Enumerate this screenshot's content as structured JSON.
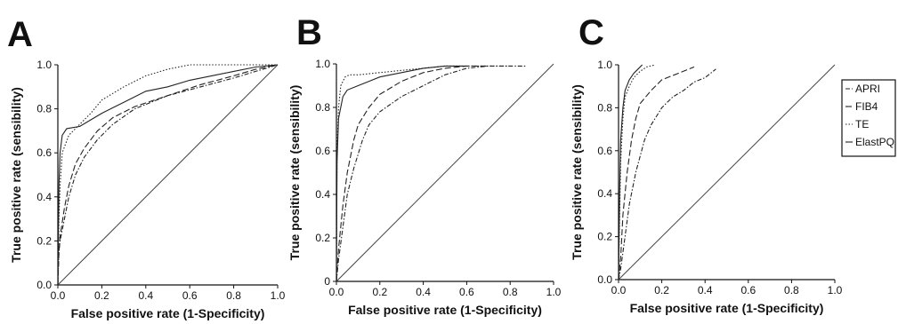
{
  "legend_entries": [
    {
      "label": "APRI",
      "dash": "5,2,1.5,2"
    },
    {
      "label": "FIB4",
      "dash": "7,3"
    },
    {
      "label": "TE",
      "dash": "1.5,2"
    },
    {
      "label": "ElastPQ",
      "dash": ""
    }
  ],
  "chart_data": [
    {
      "type": "line",
      "panel": "A",
      "xlabel": "False positive rate (1-Specificity)",
      "ylabel": "True positive rate (sensibility)",
      "xlim": [
        0,
        1
      ],
      "ylim": [
        0,
        1
      ],
      "xticks": [
        "0.0",
        "0.2",
        "0.4",
        "0.6",
        "0.8",
        "1.0"
      ],
      "yticks": [
        "0.0",
        "0.2",
        "0.4",
        "0.6",
        "0.8",
        "1.0"
      ],
      "grid": false,
      "legend": "none",
      "reference_line": [
        [
          0,
          0
        ],
        [
          1,
          1
        ]
      ],
      "series": [
        {
          "name": "APRI",
          "points": [
            [
              0,
              0
            ],
            [
              0.005,
              0.15
            ],
            [
              0.01,
              0.2
            ],
            [
              0.03,
              0.3
            ],
            [
              0.05,
              0.4
            ],
            [
              0.08,
              0.5
            ],
            [
              0.12,
              0.58
            ],
            [
              0.18,
              0.66
            ],
            [
              0.25,
              0.73
            ],
            [
              0.35,
              0.8
            ],
            [
              0.5,
              0.86
            ],
            [
              0.65,
              0.9
            ],
            [
              0.8,
              0.94
            ],
            [
              0.9,
              0.97
            ],
            [
              1,
              1
            ]
          ]
        },
        {
          "name": "FIB4",
          "points": [
            [
              0,
              0
            ],
            [
              0.005,
              0.15
            ],
            [
              0.01,
              0.22
            ],
            [
              0.03,
              0.35
            ],
            [
              0.05,
              0.45
            ],
            [
              0.08,
              0.55
            ],
            [
              0.12,
              0.62
            ],
            [
              0.18,
              0.7
            ],
            [
              0.25,
              0.76
            ],
            [
              0.35,
              0.81
            ],
            [
              0.5,
              0.86
            ],
            [
              0.65,
              0.91
            ],
            [
              0.8,
              0.95
            ],
            [
              0.9,
              0.98
            ],
            [
              1,
              1
            ]
          ]
        },
        {
          "name": "TE",
          "points": [
            [
              0,
              0
            ],
            [
              0.005,
              0.3
            ],
            [
              0.01,
              0.45
            ],
            [
              0.02,
              0.6
            ],
            [
              0.05,
              0.68
            ],
            [
              0.1,
              0.73
            ],
            [
              0.15,
              0.78
            ],
            [
              0.2,
              0.84
            ],
            [
              0.3,
              0.9
            ],
            [
              0.4,
              0.95
            ],
            [
              0.5,
              0.98
            ],
            [
              0.6,
              1.0
            ],
            [
              0.8,
              1.0
            ],
            [
              1,
              1
            ]
          ]
        },
        {
          "name": "ElastPQ",
          "points": [
            [
              0,
              0
            ],
            [
              0.005,
              0.45
            ],
            [
              0.01,
              0.6
            ],
            [
              0.02,
              0.68
            ],
            [
              0.04,
              0.71
            ],
            [
              0.1,
              0.72
            ],
            [
              0.15,
              0.75
            ],
            [
              0.2,
              0.78
            ],
            [
              0.3,
              0.83
            ],
            [
              0.4,
              0.88
            ],
            [
              0.5,
              0.9
            ],
            [
              0.6,
              0.93
            ],
            [
              0.7,
              0.95
            ],
            [
              0.8,
              0.97
            ],
            [
              0.9,
              0.99
            ],
            [
              1,
              1
            ]
          ]
        }
      ]
    },
    {
      "type": "line",
      "panel": "B",
      "xlabel": "False positive rate (1-Specificity)",
      "ylabel": "True positive rate (sensibility)",
      "xlim": [
        0,
        1
      ],
      "ylim": [
        0,
        1
      ],
      "xticks": [
        "0.0",
        "0.2",
        "0.4",
        "0.6",
        "0.8",
        "1.0"
      ],
      "yticks": [
        "0",
        "0.2",
        "0.4",
        "0.6",
        "0.8",
        "1.0"
      ],
      "grid": false,
      "legend": "none",
      "reference_line": [
        [
          0,
          0
        ],
        [
          1,
          1
        ]
      ],
      "series": [
        {
          "name": "APRI",
          "points": [
            [
              0,
              0
            ],
            [
              0.01,
              0.1
            ],
            [
              0.03,
              0.25
            ],
            [
              0.05,
              0.4
            ],
            [
              0.08,
              0.52
            ],
            [
              0.12,
              0.65
            ],
            [
              0.15,
              0.72
            ],
            [
              0.2,
              0.78
            ],
            [
              0.3,
              0.85
            ],
            [
              0.4,
              0.9
            ],
            [
              0.5,
              0.95
            ],
            [
              0.6,
              0.98
            ],
            [
              0.7,
              0.99
            ],
            [
              0.87,
              0.99
            ]
          ]
        },
        {
          "name": "FIB4",
          "points": [
            [
              0,
              0
            ],
            [
              0.01,
              0.15
            ],
            [
              0.03,
              0.35
            ],
            [
              0.05,
              0.5
            ],
            [
              0.08,
              0.65
            ],
            [
              0.1,
              0.72
            ],
            [
              0.15,
              0.8
            ],
            [
              0.2,
              0.86
            ],
            [
              0.3,
              0.92
            ],
            [
              0.4,
              0.96
            ],
            [
              0.5,
              0.98
            ],
            [
              0.6,
              0.99
            ],
            [
              0.7,
              0.99
            ]
          ]
        },
        {
          "name": "TE",
          "points": [
            [
              0,
              0
            ],
            [
              0.003,
              0.6
            ],
            [
              0.01,
              0.8
            ],
            [
              0.02,
              0.9
            ],
            [
              0.04,
              0.94
            ],
            [
              0.06,
              0.95
            ],
            [
              0.1,
              0.95
            ],
            [
              0.2,
              0.96
            ],
            [
              0.3,
              0.97
            ],
            [
              0.4,
              0.98
            ],
            [
              0.5,
              0.99
            ],
            [
              0.6,
              0.99
            ],
            [
              0.8,
              0.99
            ]
          ]
        },
        {
          "name": "ElastPQ",
          "points": [
            [
              0,
              0
            ],
            [
              0.003,
              0.55
            ],
            [
              0.01,
              0.75
            ],
            [
              0.03,
              0.85
            ],
            [
              0.05,
              0.88
            ],
            [
              0.1,
              0.9
            ],
            [
              0.15,
              0.92
            ],
            [
              0.2,
              0.94
            ],
            [
              0.3,
              0.96
            ],
            [
              0.4,
              0.98
            ],
            [
              0.5,
              0.99
            ],
            [
              0.6,
              0.99
            ]
          ]
        }
      ]
    },
    {
      "type": "line",
      "panel": "C",
      "xlabel": "False positive rate (1-Specificity)",
      "ylabel": "True positive rate (sensibility)",
      "xlim": [
        0,
        1
      ],
      "ylim": [
        0,
        1
      ],
      "xticks": [
        "0.0",
        "0.2",
        "0.4",
        "0.6",
        "0.8",
        "1.0"
      ],
      "yticks": [
        "0.0",
        "0.2",
        "0.4",
        "0.6",
        "0.8",
        "1.0"
      ],
      "grid": false,
      "legend": "top-right",
      "reference_line": [
        [
          0,
          0
        ],
        [
          1,
          1
        ]
      ],
      "series": [
        {
          "name": "APRI",
          "points": [
            [
              0,
              0
            ],
            [
              0.01,
              0.05
            ],
            [
              0.03,
              0.2
            ],
            [
              0.05,
              0.35
            ],
            [
              0.08,
              0.5
            ],
            [
              0.12,
              0.65
            ],
            [
              0.15,
              0.72
            ],
            [
              0.2,
              0.8
            ],
            [
              0.25,
              0.85
            ],
            [
              0.3,
              0.88
            ],
            [
              0.35,
              0.92
            ],
            [
              0.4,
              0.94
            ],
            [
              0.45,
              0.98
            ]
          ]
        },
        {
          "name": "FIB4",
          "points": [
            [
              0,
              0
            ],
            [
              0.01,
              0.1
            ],
            [
              0.02,
              0.3
            ],
            [
              0.04,
              0.5
            ],
            [
              0.06,
              0.65
            ],
            [
              0.08,
              0.75
            ],
            [
              0.1,
              0.82
            ],
            [
              0.15,
              0.88
            ],
            [
              0.2,
              0.93
            ],
            [
              0.25,
              0.95
            ],
            [
              0.3,
              0.97
            ],
            [
              0.35,
              0.99
            ]
          ]
        },
        {
          "name": "TE",
          "points": [
            [
              0,
              0
            ],
            [
              0.005,
              0.3
            ],
            [
              0.01,
              0.55
            ],
            [
              0.02,
              0.75
            ],
            [
              0.03,
              0.85
            ],
            [
              0.05,
              0.9
            ],
            [
              0.07,
              0.94
            ],
            [
              0.1,
              0.97
            ],
            [
              0.13,
              0.99
            ],
            [
              0.17,
              1.0
            ]
          ]
        },
        {
          "name": "ElastPQ",
          "points": [
            [
              0,
              0
            ],
            [
              0.005,
              0.4
            ],
            [
              0.01,
              0.65
            ],
            [
              0.02,
              0.8
            ],
            [
              0.03,
              0.88
            ],
            [
              0.05,
              0.93
            ],
            [
              0.07,
              0.96
            ],
            [
              0.09,
              0.98
            ],
            [
              0.11,
              1.0
            ]
          ]
        }
      ]
    }
  ]
}
